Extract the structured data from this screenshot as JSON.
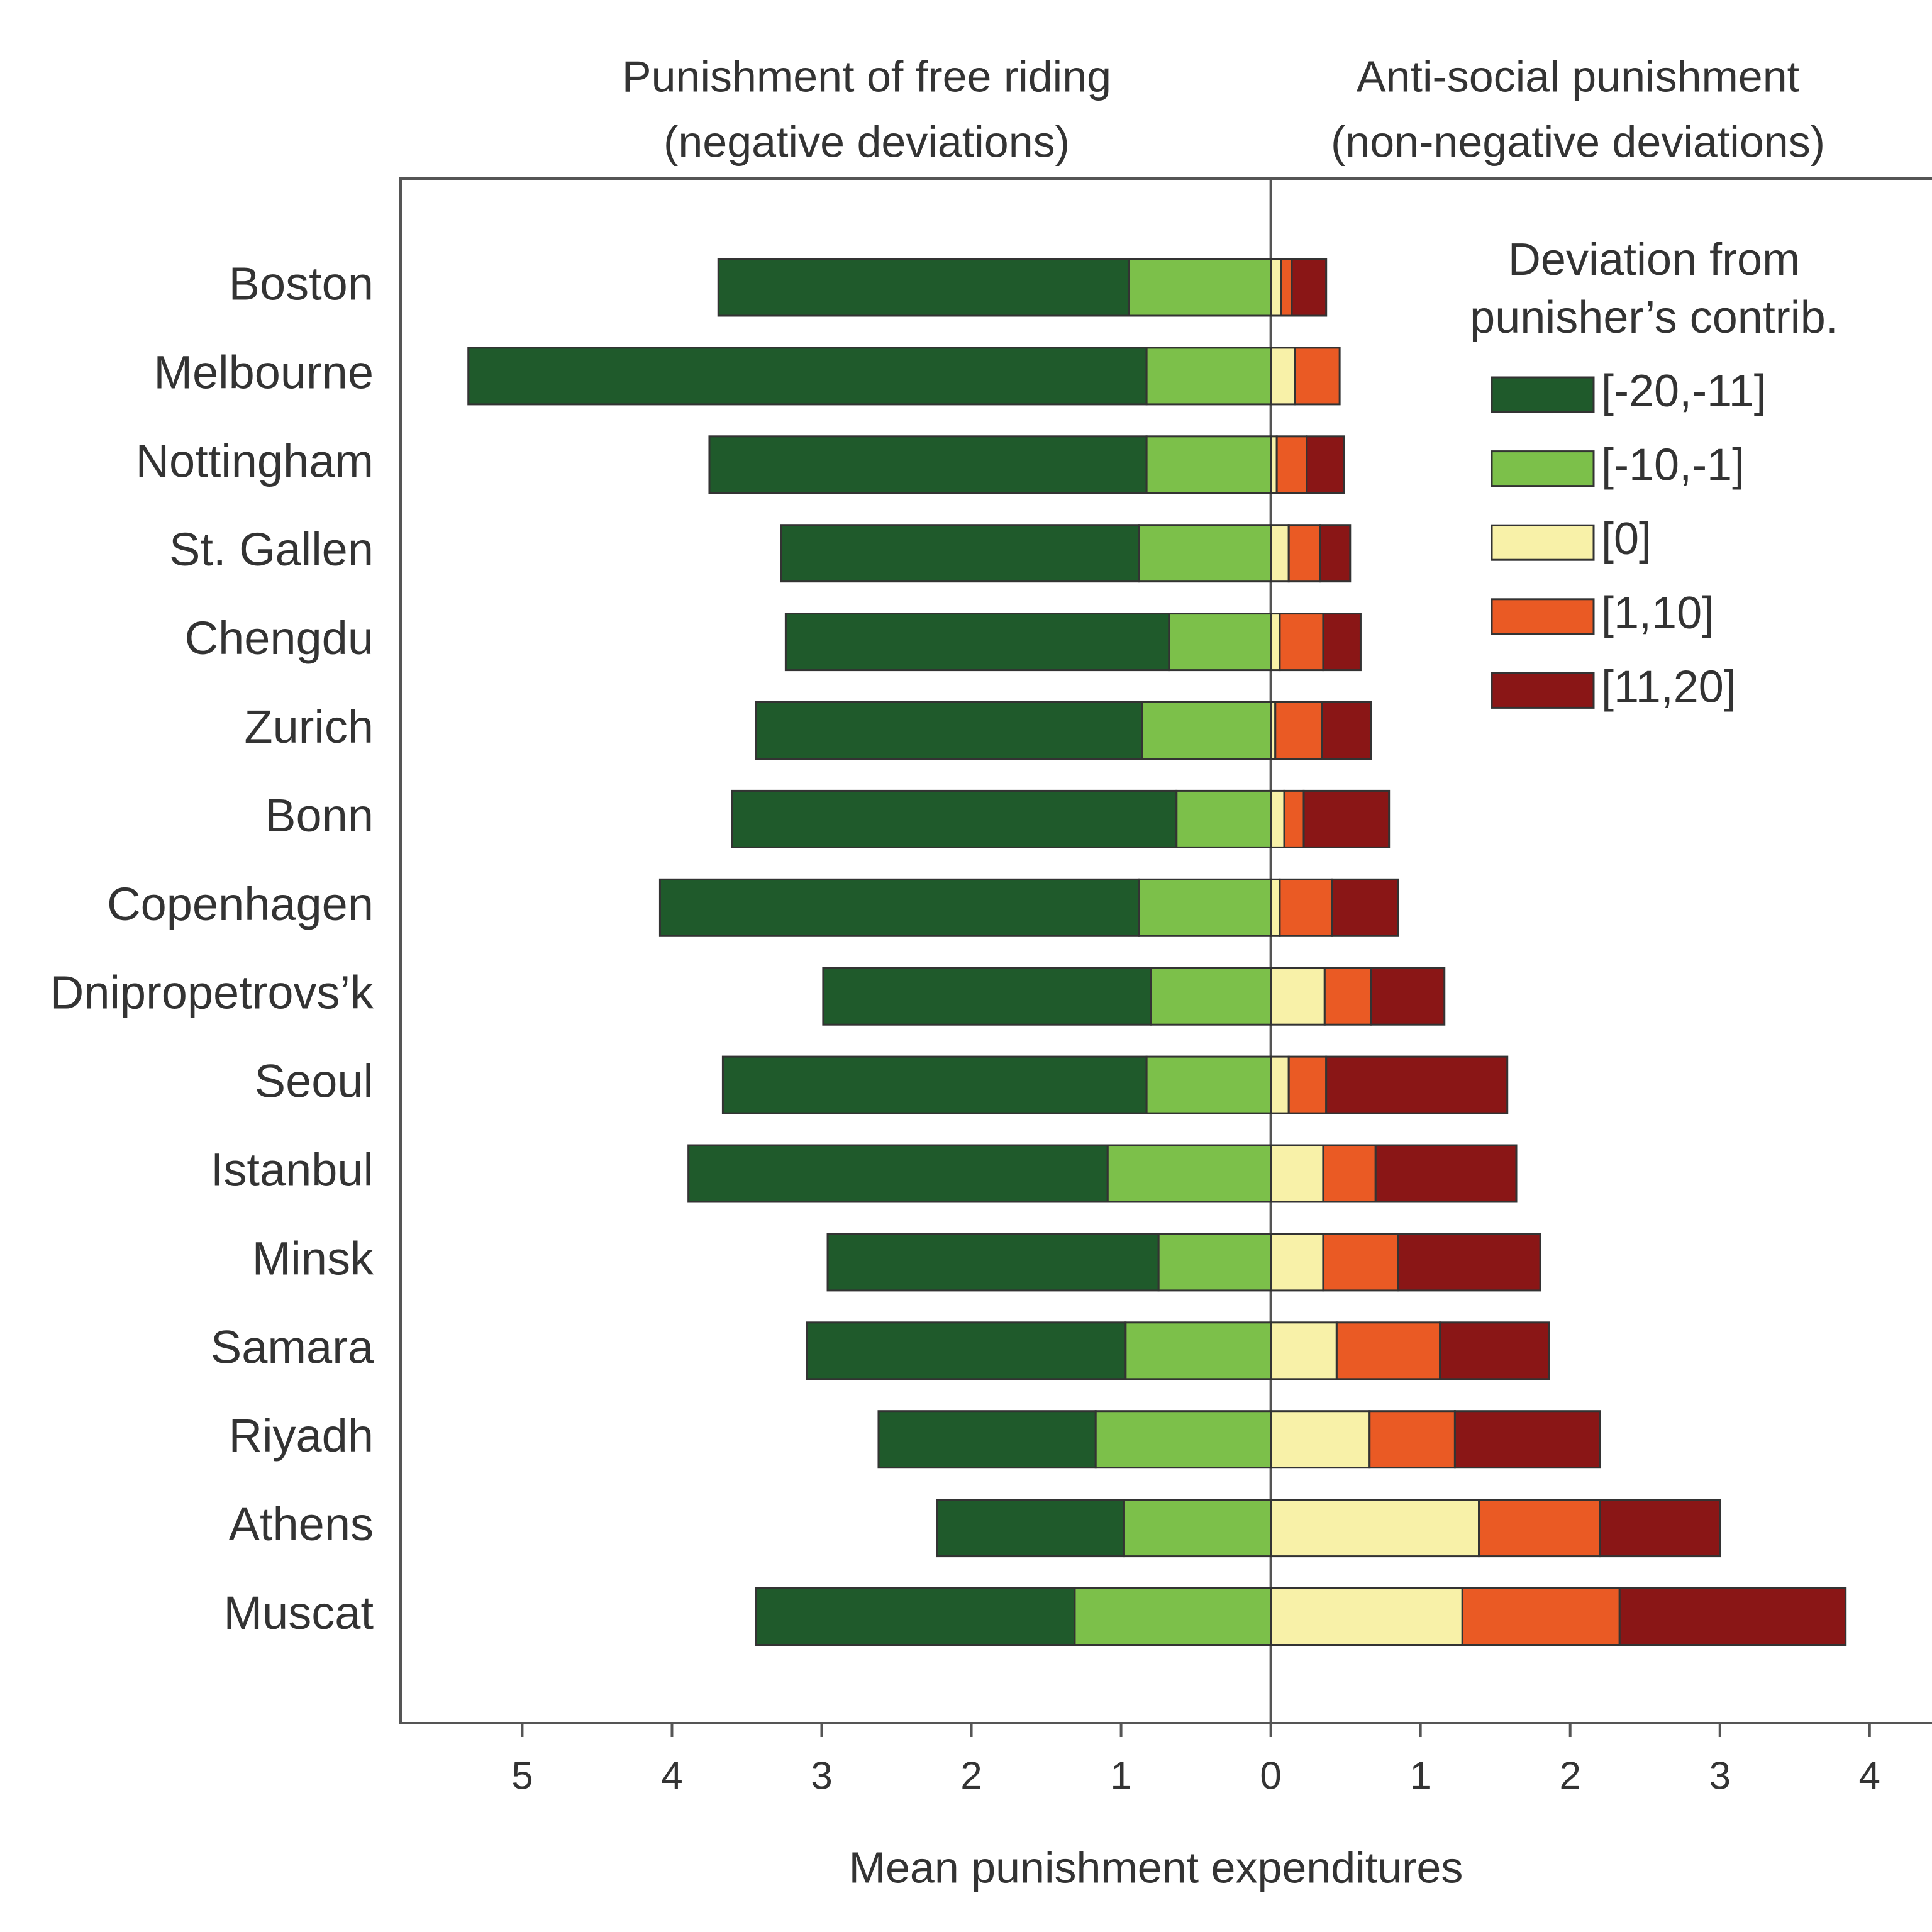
{
  "chart_data": {
    "type": "diverging-stacked-bar",
    "left_title": [
      "Punishment of free riding",
      "(negative deviations)"
    ],
    "right_title": [
      "Anti-social punishment",
      "(non-negative deviations)"
    ],
    "legend_title": [
      "Deviation from",
      "punisher’s contrib."
    ],
    "x_label": "Mean punishment expenditures",
    "categories": [
      "Boston",
      "Melbourne",
      "Nottingham",
      "St. Gallen",
      "Chengdu",
      "Zurich",
      "Bonn",
      "Copenhagen",
      "Dnipropetrovs’k",
      "Seoul",
      "Istanbul",
      "Minsk",
      "Samara",
      "Riyadh",
      "Athens",
      "Muscat"
    ],
    "series": [
      {
        "name": "[-20,-11]",
        "color": "#1f5a2b",
        "values": [
          -2.74,
          -4.53,
          -2.92,
          -2.39,
          -2.56,
          -2.58,
          -2.97,
          -3.2,
          -2.19,
          -2.83,
          -2.8,
          -2.21,
          -2.13,
          -1.45,
          -1.25,
          -2.13
        ]
      },
      {
        "name": "[-10,-1]",
        "color": "#7cc04a",
        "values": [
          -0.95,
          -0.83,
          -0.83,
          -0.88,
          -0.68,
          -0.86,
          -0.63,
          -0.88,
          -0.8,
          -0.83,
          -1.09,
          -0.75,
          -0.97,
          -1.17,
          -0.98,
          -1.31
        ]
      },
      {
        "name": "[0]",
        "color": "#f8f1a8",
        "values": [
          0.07,
          0.16,
          0.04,
          0.12,
          0.06,
          0.03,
          0.09,
          0.06,
          0.36,
          0.12,
          0.35,
          0.35,
          0.44,
          0.66,
          1.39,
          1.28
        ]
      },
      {
        "name": "[1,10]",
        "color": "#ea5a24",
        "values": [
          0.07,
          0.3,
          0.2,
          0.21,
          0.29,
          0.31,
          0.13,
          0.35,
          0.31,
          0.25,
          0.35,
          0.5,
          0.69,
          0.57,
          0.81,
          1.05
        ]
      },
      {
        "name": "[11,20]",
        "color": "#8a1616",
        "values": [
          0.23,
          0,
          0.25,
          0.2,
          0.25,
          0.33,
          0.57,
          0.44,
          0.49,
          1.21,
          0.94,
          0.95,
          0.73,
          0.97,
          0.8,
          1.51
        ]
      }
    ],
    "xlim": [
      -5.8,
      4.4
    ],
    "xticks": [
      {
        "value": -5,
        "label": "5"
      },
      {
        "value": -4,
        "label": "4"
      },
      {
        "value": -3,
        "label": "3"
      },
      {
        "value": -2,
        "label": "2"
      },
      {
        "value": -1,
        "label": "1"
      },
      0,
      1,
      2,
      3,
      4
    ],
    "legend": "top-right"
  }
}
